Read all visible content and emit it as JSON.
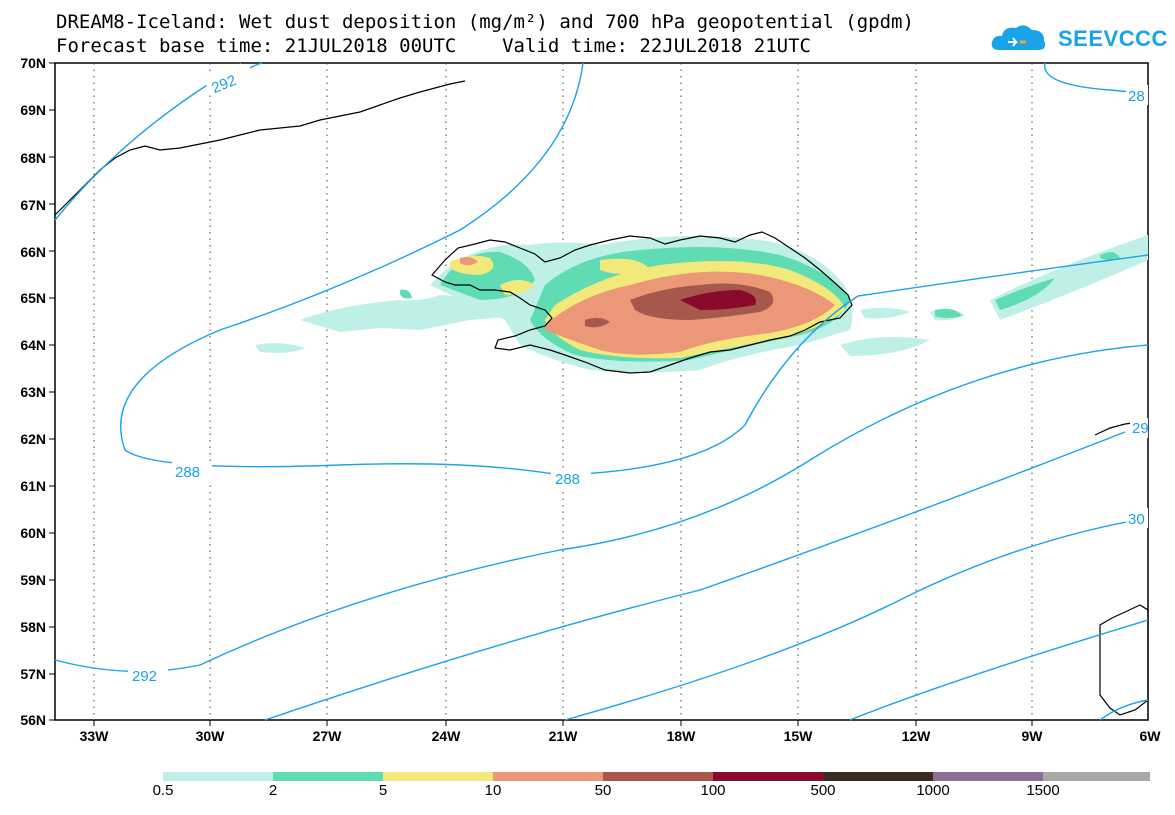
{
  "title_line1": "DREAM8-Iceland: Wet dust deposition (mg/m²) and 700 hPa geopotential (gpdm)",
  "title_line2": "Forecast base time: 21JUL2018 00UTC    Valid time: 22JUL2018 21UTC",
  "logo": {
    "text": "SEEVCCC",
    "icon": "cloud-logo-icon",
    "color": "#1aa3e8"
  },
  "map": {
    "lat_labels": [
      "70N",
      "69N",
      "68N",
      "67N",
      "66N",
      "65N",
      "64N",
      "63N",
      "62N",
      "61N",
      "60N",
      "59N",
      "58N",
      "57N",
      "56N"
    ],
    "lon_labels": [
      "33W",
      "30W",
      "27W",
      "24W",
      "21W",
      "18W",
      "15W",
      "12W",
      "9W",
      "6W"
    ],
    "contour_color": "#1aa3e8",
    "contour_labels": [
      "292",
      "288",
      "288",
      "292",
      "28",
      "29",
      "30"
    ]
  },
  "colorbar": {
    "labels": [
      "0.5",
      "2",
      "5",
      "10",
      "50",
      "100",
      "500",
      "1000",
      "1500"
    ],
    "colors": [
      "#bff0e8",
      "#5fdcb4",
      "#f2e97a",
      "#eb9878",
      "#a7584c",
      "#8a0a2c",
      "#3a2a20",
      "#8c6e98",
      "#a8a8a8"
    ]
  }
}
